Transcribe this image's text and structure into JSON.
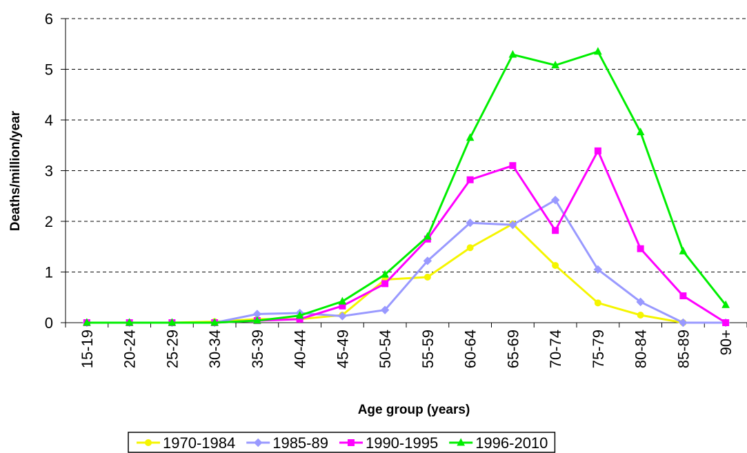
{
  "chart_data": {
    "type": "line",
    "x_label": "Age group (years)",
    "y_label": "Deaths/million/year",
    "categories": [
      "15-19",
      "20-24",
      "25-29",
      "30-34",
      "35-39",
      "40-44",
      "45-49",
      "50-54",
      "55-59",
      "60-64",
      "65-69",
      "70-74",
      "75-79",
      "80-84",
      "85-89",
      "90+"
    ],
    "series": [
      {
        "name": "1970-1984",
        "color": "#f5f500",
        "marker": "circle",
        "values": [
          0,
          0,
          0,
          0.02,
          0.07,
          0.07,
          0.15,
          0.85,
          0.9,
          1.48,
          1.95,
          1.13,
          0.39,
          0.15,
          0,
          null
        ]
      },
      {
        "name": "1985-89",
        "color": "#9999ff",
        "marker": "diamond",
        "values": [
          0,
          0,
          0,
          0,
          0.17,
          0.19,
          0.13,
          0.25,
          1.22,
          1.97,
          1.93,
          2.42,
          1.05,
          0.41,
          0,
          0
        ]
      },
      {
        "name": "1990-1995",
        "color": "#ff00ff",
        "marker": "square",
        "values": [
          0,
          0,
          0,
          0,
          0.04,
          0.07,
          0.33,
          0.77,
          1.65,
          2.82,
          3.1,
          1.82,
          3.39,
          1.46,
          0.53,
          0
        ]
      },
      {
        "name": "1996-2010",
        "color": "#00ee00",
        "marker": "triangle",
        "values": [
          0,
          0,
          0,
          0,
          0.04,
          0.14,
          0.42,
          0.95,
          1.7,
          3.65,
          5.29,
          5.08,
          5.35,
          3.76,
          1.41,
          0.35
        ]
      }
    ],
    "ylim": [
      0,
      6
    ],
    "yticks": [
      0,
      1,
      2,
      3,
      4,
      5,
      6
    ],
    "grid": true,
    "legend": "bottom"
  }
}
